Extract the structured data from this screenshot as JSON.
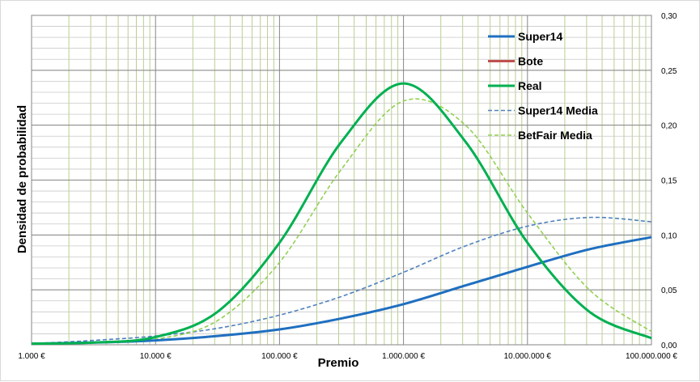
{
  "chart_data": {
    "type": "line",
    "x_scale": "log",
    "xlabel": "Premio",
    "ylabel": "Densidad de probabilidad",
    "xlim": [
      1000,
      100000000
    ],
    "ylim": [
      0,
      0.3
    ],
    "x_ticks": [
      1000,
      10000,
      100000,
      1000000,
      10000000,
      100000000
    ],
    "x_tick_labels": [
      "1.000 €",
      "10.000 €",
      "100.000 €",
      "1.000.000 €",
      "10.000.000 €",
      "100.000.000 €"
    ],
    "y_ticks": [
      0,
      0.05,
      0.1,
      0.15,
      0.2,
      0.25,
      0.3
    ],
    "y_tick_labels": [
      "0,00",
      "0,05",
      "0,10",
      "0,15",
      "0,20",
      "0,25",
      "0,30"
    ],
    "y_axis_side": "right",
    "grid": true,
    "legend_position": "top-right",
    "series": [
      {
        "name": "Super14",
        "color": "#1f6fc0",
        "dash": "solid",
        "x": [
          1000,
          3162,
          10000,
          31623,
          100000,
          316228,
          1000000,
          3162278,
          10000000,
          31622777,
          100000000
        ],
        "y": [
          0.001,
          0.002,
          0.004,
          0.008,
          0.014,
          0.024,
          0.037,
          0.054,
          0.071,
          0.087,
          0.098
        ]
      },
      {
        "name": "Bote",
        "color": "#c0504d",
        "dash": "solid",
        "x": [],
        "y": []
      },
      {
        "name": "Real",
        "color": "#00b050",
        "dash": "solid",
        "x": [
          1000,
          3162,
          10000,
          31623,
          100000,
          316228,
          1000000,
          3162278,
          10000000,
          31622777,
          100000000
        ],
        "y": [
          0.001,
          0.002,
          0.007,
          0.03,
          0.093,
          0.185,
          0.238,
          0.185,
          0.093,
          0.03,
          0.006
        ]
      },
      {
        "name": "Super14 Media",
        "color": "#4f81bd",
        "dash": "dashed",
        "x": [
          1000,
          3162,
          10000,
          31623,
          100000,
          316228,
          1000000,
          3162278,
          10000000,
          31622777,
          100000000
        ],
        "y": [
          0.001,
          0.004,
          0.008,
          0.015,
          0.027,
          0.044,
          0.066,
          0.09,
          0.108,
          0.116,
          0.112
        ]
      },
      {
        "name": "BetFair Media",
        "color": "#92d050",
        "dash": "dashed",
        "x": [
          1000,
          3162,
          10000,
          31623,
          100000,
          316228,
          1000000,
          3162278,
          10000000,
          31622777,
          100000000
        ],
        "y": [
          0.001,
          0.002,
          0.005,
          0.022,
          0.075,
          0.16,
          0.222,
          0.2,
          0.12,
          0.05,
          0.012
        ]
      }
    ]
  }
}
